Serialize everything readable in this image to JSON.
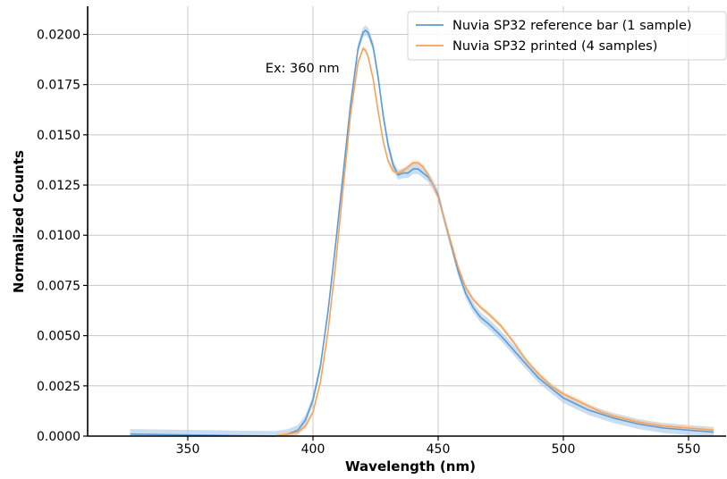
{
  "chart_data": {
    "type": "line",
    "title": "",
    "xlabel": "Wavelength (nm)",
    "ylabel": "Normalized Counts",
    "xlim": [
      310,
      565
    ],
    "ylim": [
      0,
      0.0214
    ],
    "xticks": [
      350,
      400,
      450,
      500,
      550
    ],
    "xtick_labels": [
      "350",
      "400",
      "450",
      "500",
      "550"
    ],
    "yticks": [
      0,
      0.0025,
      0.005,
      0.0075,
      0.01,
      0.0125,
      0.015,
      0.0175,
      0.02
    ],
    "ytick_labels": [
      "0.0000",
      "0.0025",
      "0.0050",
      "0.0075",
      "0.0100",
      "0.0125",
      "0.0150",
      "0.0175",
      "0.0200"
    ],
    "grid": true,
    "legend_position": "top-right",
    "annotations": [
      {
        "text": "Ex: 360 nm",
        "x": 381,
        "y": 0.0181
      }
    ],
    "series": [
      {
        "name": "Nuvia SP32 reference bar (1 sample)",
        "color": "#5b9bd5",
        "band_color": "#a8c8e8",
        "band_width": 0.00025,
        "x": [
          327,
          385,
          390,
          394,
          397,
          400,
          403,
          406,
          409,
          412,
          415,
          418,
          420,
          421,
          422,
          424,
          426,
          428,
          430,
          432,
          434,
          436,
          438,
          440,
          442,
          444,
          446,
          448,
          450,
          452,
          455,
          458,
          461,
          464,
          467,
          470,
          475,
          480,
          485,
          490,
          495,
          500,
          505,
          510,
          515,
          520,
          530,
          540,
          550,
          560
        ],
        "y": [
          0.0001,
          0.0,
          0.0001,
          0.0003,
          0.0008,
          0.0018,
          0.0035,
          0.0062,
          0.0095,
          0.013,
          0.0165,
          0.0193,
          0.0201,
          0.0202,
          0.0201,
          0.0194,
          0.0179,
          0.016,
          0.0145,
          0.0135,
          0.013,
          0.0131,
          0.0131,
          0.0133,
          0.0133,
          0.0131,
          0.0129,
          0.0125,
          0.012,
          0.011,
          0.0096,
          0.0082,
          0.0071,
          0.0064,
          0.0059,
          0.0056,
          0.005,
          0.0043,
          0.0036,
          0.0029,
          0.0024,
          0.0019,
          0.0016,
          0.0013,
          0.0011,
          0.0009,
          0.0006,
          0.0004,
          0.0003,
          0.0002
        ]
      },
      {
        "name": "Nuvia SP32 printed (4 samples)",
        "color": "#f5a35c",
        "band_color": "#f9cfa8",
        "band_width": 0.00012,
        "x": [
          385,
          390,
          394,
          397,
          400,
          403,
          406,
          409,
          412,
          415,
          418,
          420,
          421,
          422,
          424,
          426,
          428,
          430,
          432,
          434,
          436,
          438,
          440,
          442,
          444,
          446,
          448,
          450,
          452,
          455,
          458,
          461,
          464,
          467,
          470,
          475,
          480,
          485,
          490,
          495,
          500,
          505,
          510,
          515,
          520,
          530,
          540,
          550,
          560
        ],
        "y": [
          0.0,
          0.0001,
          0.0002,
          0.0005,
          0.0012,
          0.0027,
          0.0052,
          0.0085,
          0.0123,
          0.016,
          0.0186,
          0.0193,
          0.0192,
          0.0189,
          0.0178,
          0.0162,
          0.0147,
          0.0137,
          0.0132,
          0.0131,
          0.0132,
          0.0134,
          0.0136,
          0.0136,
          0.0134,
          0.013,
          0.0125,
          0.0119,
          0.011,
          0.0097,
          0.0084,
          0.0074,
          0.0068,
          0.0064,
          0.0061,
          0.0055,
          0.0047,
          0.0038,
          0.0031,
          0.0025,
          0.0021,
          0.0018,
          0.0015,
          0.0012,
          0.001,
          0.0007,
          0.0005,
          0.0004,
          0.0003
        ]
      }
    ]
  }
}
